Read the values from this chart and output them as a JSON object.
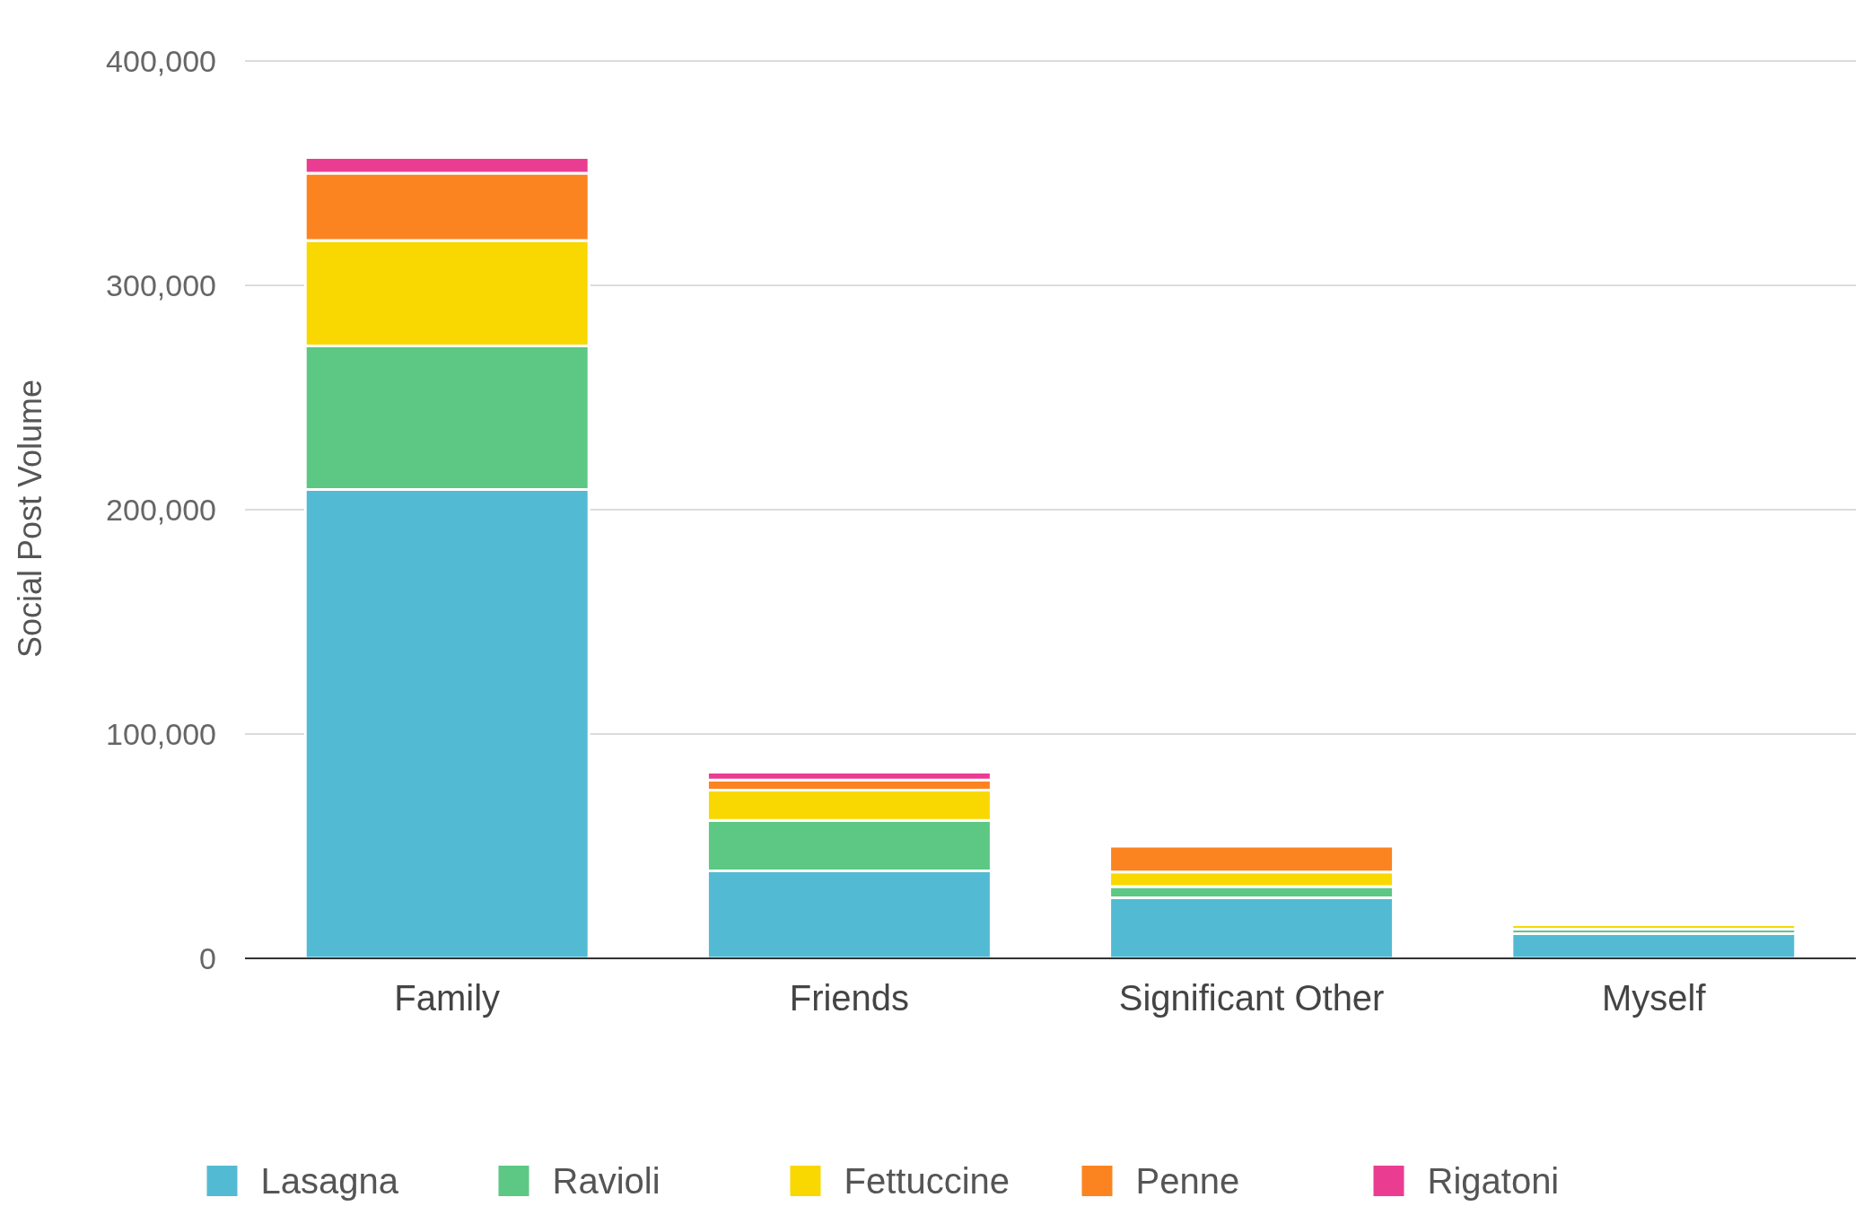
{
  "chart_data": {
    "type": "bar",
    "stacked": true,
    "ylabel": "Social Post Volume",
    "categories": [
      "Family",
      "Friends",
      "Significant Other",
      "Myself"
    ],
    "series": [
      {
        "name": "Lasagna",
        "color": "#52bbd3",
        "values": [
          209000,
          39000,
          27000,
          11000
        ]
      },
      {
        "name": "Ravioli",
        "color": "#5cc884",
        "values": [
          64000,
          22500,
          5000,
          2000
        ]
      },
      {
        "name": "Fettuccine",
        "color": "#f8d800",
        "values": [
          47000,
          13500,
          6500,
          2000
        ]
      },
      {
        "name": "Penne",
        "color": "#fb8420",
        "values": [
          30000,
          4500,
          11500,
          0
        ]
      },
      {
        "name": "Rigatoni",
        "color": "#ea3d92",
        "values": [
          7000,
          3500,
          0,
          0
        ]
      }
    ],
    "ylim": [
      0,
      400000
    ],
    "yticks": [
      {
        "value": 0,
        "label": "0"
      },
      {
        "value": 100000,
        "label": "100,000"
      },
      {
        "value": 200000,
        "label": "200,000"
      },
      {
        "value": 300000,
        "label": "300,000"
      },
      {
        "value": 400000,
        "label": "400,000"
      }
    ],
    "grid": "y",
    "legend": "bottom"
  }
}
